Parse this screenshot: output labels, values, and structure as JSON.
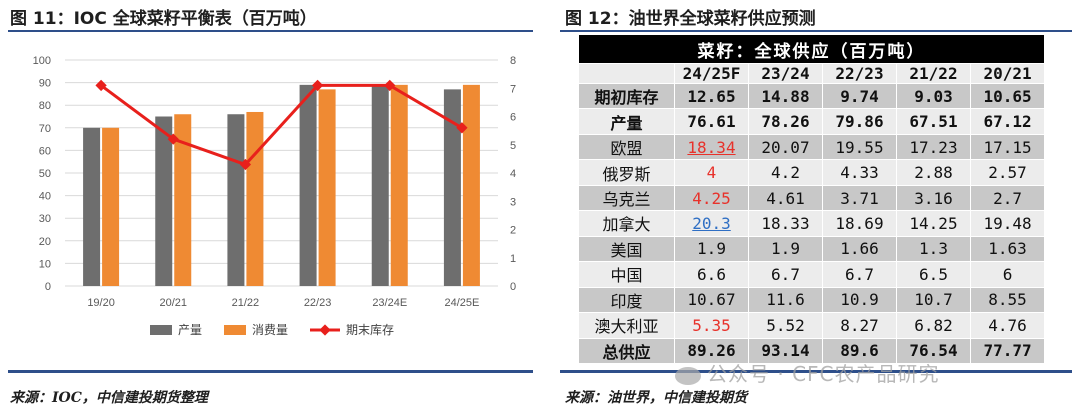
{
  "left_figure": {
    "title": "图 11：IOC 全球菜籽平衡表（百万吨）",
    "source": "来源：IOC，中信建投期货整理"
  },
  "right_figure": {
    "title": "图 12：油世界全球菜籽供应预测",
    "source": "来源：油世界，中信建投期货"
  },
  "watermark": "公众号 · CFC农产品研究",
  "colors": {
    "production": "#6e6e6e",
    "consumption": "#ef8a33",
    "ending_stock": "#e8201c",
    "rule": "#2e4f8a"
  },
  "chart_data": [
    {
      "type": "bar",
      "categories": [
        "19/20",
        "20/21",
        "21/22",
        "22/23",
        "23/24E",
        "24/25E"
      ],
      "series": [
        {
          "name": "产量",
          "type": "bar",
          "axis": "left",
          "values": [
            70,
            75,
            76,
            89,
            89,
            87
          ]
        },
        {
          "name": "消费量",
          "type": "bar",
          "axis": "left",
          "values": [
            70,
            76,
            77,
            87,
            89,
            89
          ]
        },
        {
          "name": "期末库存",
          "type": "line",
          "axis": "right",
          "values": [
            7.1,
            5.2,
            4.3,
            7.1,
            7.1,
            5.6
          ]
        }
      ],
      "ylim": [
        0,
        100
      ],
      "yticks": [
        "0",
        "10",
        "20",
        "30",
        "40",
        "50",
        "60",
        "70",
        "80",
        "90",
        "100"
      ],
      "y2lim": [
        0,
        8
      ],
      "y2ticks": [
        "0",
        "1",
        "2",
        "3",
        "4",
        "5",
        "6",
        "7",
        "8"
      ],
      "legend": "bottom",
      "grid": true
    },
    {
      "type": "table",
      "title": "菜籽：全球供应（百万吨）",
      "columns": [
        "24/25F",
        "23/24",
        "22/23",
        "21/22",
        "20/21"
      ],
      "rows": [
        {
          "label": "期初库存",
          "values": [
            "12.65",
            "14.88",
            "9.74",
            "9.03",
            "10.65"
          ]
        },
        {
          "label": "产量",
          "values": [
            "76.61",
            "78.26",
            "79.86",
            "67.51",
            "67.12"
          ]
        },
        {
          "label": "欧盟",
          "values": [
            "18.34",
            "20.07",
            "19.55",
            "17.23",
            "17.15"
          ]
        },
        {
          "label": "俄罗斯",
          "values": [
            "4",
            "4.2",
            "4.33",
            "2.88",
            "2.57"
          ]
        },
        {
          "label": "乌克兰",
          "values": [
            "4.25",
            "4.61",
            "3.71",
            "3.16",
            "2.7"
          ]
        },
        {
          "label": "加拿大",
          "values": [
            "20.3",
            "18.33",
            "18.69",
            "14.25",
            "19.48"
          ]
        },
        {
          "label": "美国",
          "values": [
            "1.9",
            "1.9",
            "1.66",
            "1.3",
            "1.63"
          ]
        },
        {
          "label": "中国",
          "values": [
            "6.6",
            "6.7",
            "6.7",
            "6.5",
            "6"
          ]
        },
        {
          "label": "印度",
          "values": [
            "10.67",
            "11.6",
            "10.9",
            "10.7",
            "8.55"
          ]
        },
        {
          "label": "澳大利亚",
          "values": [
            "5.35",
            "5.52",
            "8.27",
            "6.82",
            "4.76"
          ]
        },
        {
          "label": "总供应",
          "values": [
            "89.26",
            "93.14",
            "89.6",
            "76.54",
            "77.77"
          ]
        }
      ]
    }
  ]
}
